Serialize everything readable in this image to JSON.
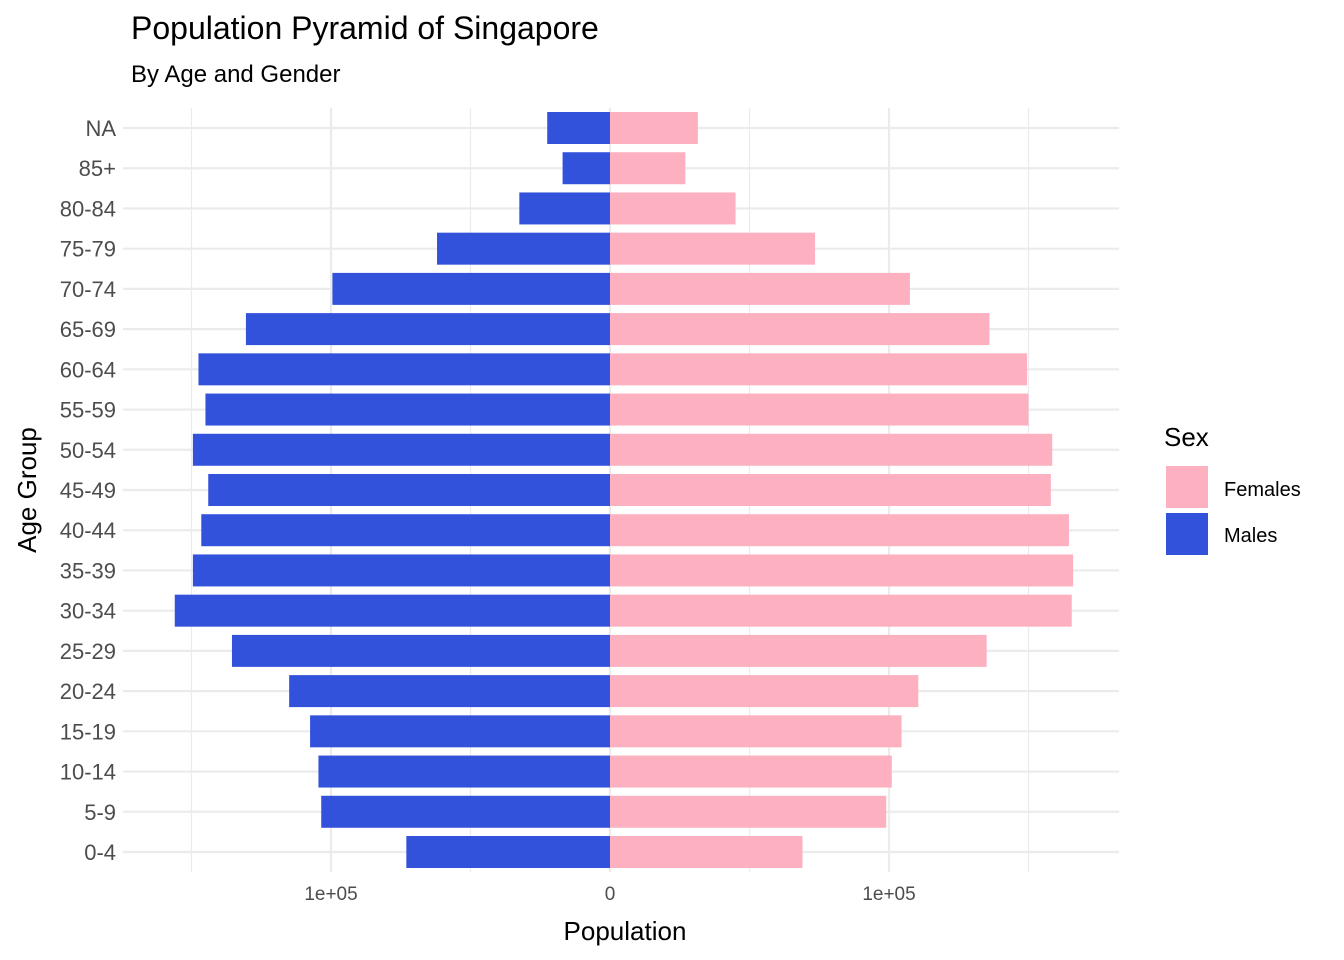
{
  "chart_data": {
    "type": "bar",
    "orientation": "horizontal-diverging",
    "title": "Population Pyramid of Singapore",
    "subtitle": "By Age and Gender",
    "xlabel": "Population",
    "ylabel": "Age Group",
    "xlim": [
      -155000,
      182000
    ],
    "x_ticks": [
      {
        "value": -100000,
        "label": "1e+05"
      },
      {
        "value": 0,
        "label": "0"
      },
      {
        "value": 100000,
        "label": "1e+05"
      }
    ],
    "categories": [
      "0-4",
      "5-9",
      "10-14",
      "15-19",
      "20-24",
      "25-29",
      "30-34",
      "35-39",
      "40-44",
      "45-49",
      "50-54",
      "55-59",
      "60-64",
      "65-69",
      "70-74",
      "75-79",
      "80-84",
      "85+",
      "NA"
    ],
    "series": [
      {
        "name": "Females",
        "color": "#fdb0c0",
        "values": [
          69000,
          99000,
          101000,
          104500,
          110500,
          135000,
          165500,
          166000,
          164500,
          158000,
          158500,
          150000,
          149500,
          136000,
          107500,
          73500,
          45000,
          27000,
          31500
        ]
      },
      {
        "name": "Males",
        "color": "#3352db",
        "values": [
          -73000,
          -103500,
          -104500,
          -107500,
          -115000,
          -135500,
          -156000,
          -149500,
          -146500,
          -144000,
          -149500,
          -145000,
          -147500,
          -130500,
          -99500,
          -62000,
          -32500,
          -17000,
          -22500
        ]
      }
    ],
    "legend": {
      "title": "Sex",
      "position": "right",
      "entries": [
        "Females",
        "Males"
      ]
    },
    "grid": true
  }
}
